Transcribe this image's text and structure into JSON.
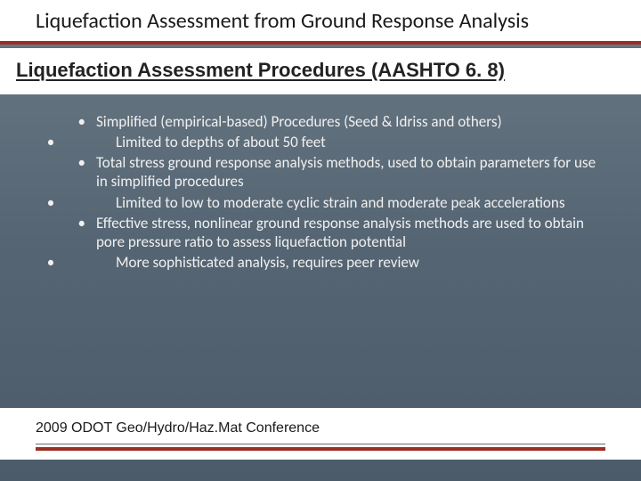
{
  "colors": {
    "rule": "#9a2f23",
    "ruleThin": "#6a6a6a",
    "headerBg": "#ffffff",
    "bodyBgTop": "#6b7985",
    "bodyBgBottom": "#4b5b6a",
    "bodyText": "#f0f0f0",
    "titleText": "#1a1a1a"
  },
  "typography": {
    "titleSize": 24,
    "subtitleSize": 22,
    "bodySize": 17,
    "footerSize": 16,
    "titleWeight": 400,
    "subtitleWeight": 700
  },
  "title": "Liquefaction Assessment from Ground Response Analysis",
  "subtitle": "Liquefaction Assessment Procedures (AASHTO 6. 8)",
  "bullets": [
    {
      "level": 1,
      "text": "Simplified (empirical-based) Procedures (Seed & Idriss and others)"
    },
    {
      "level": 0,
      "text": "Limited to depths of about 50 feet"
    },
    {
      "level": 1,
      "text": "Total stress ground response analysis methods, used to obtain parameters for use in simplified procedures"
    },
    {
      "level": 0,
      "text": "Limited to low to moderate cyclic strain and moderate peak accelerations"
    },
    {
      "level": 1,
      "text": "Effective stress, nonlinear ground response analysis methods are used to obtain pore pressure ratio to assess liquefaction potential"
    },
    {
      "level": 0,
      "text": "More sophisticated analysis, requires peer review"
    }
  ],
  "footer": "2009 ODOT Geo/Hydro/Haz.Mat Conference"
}
